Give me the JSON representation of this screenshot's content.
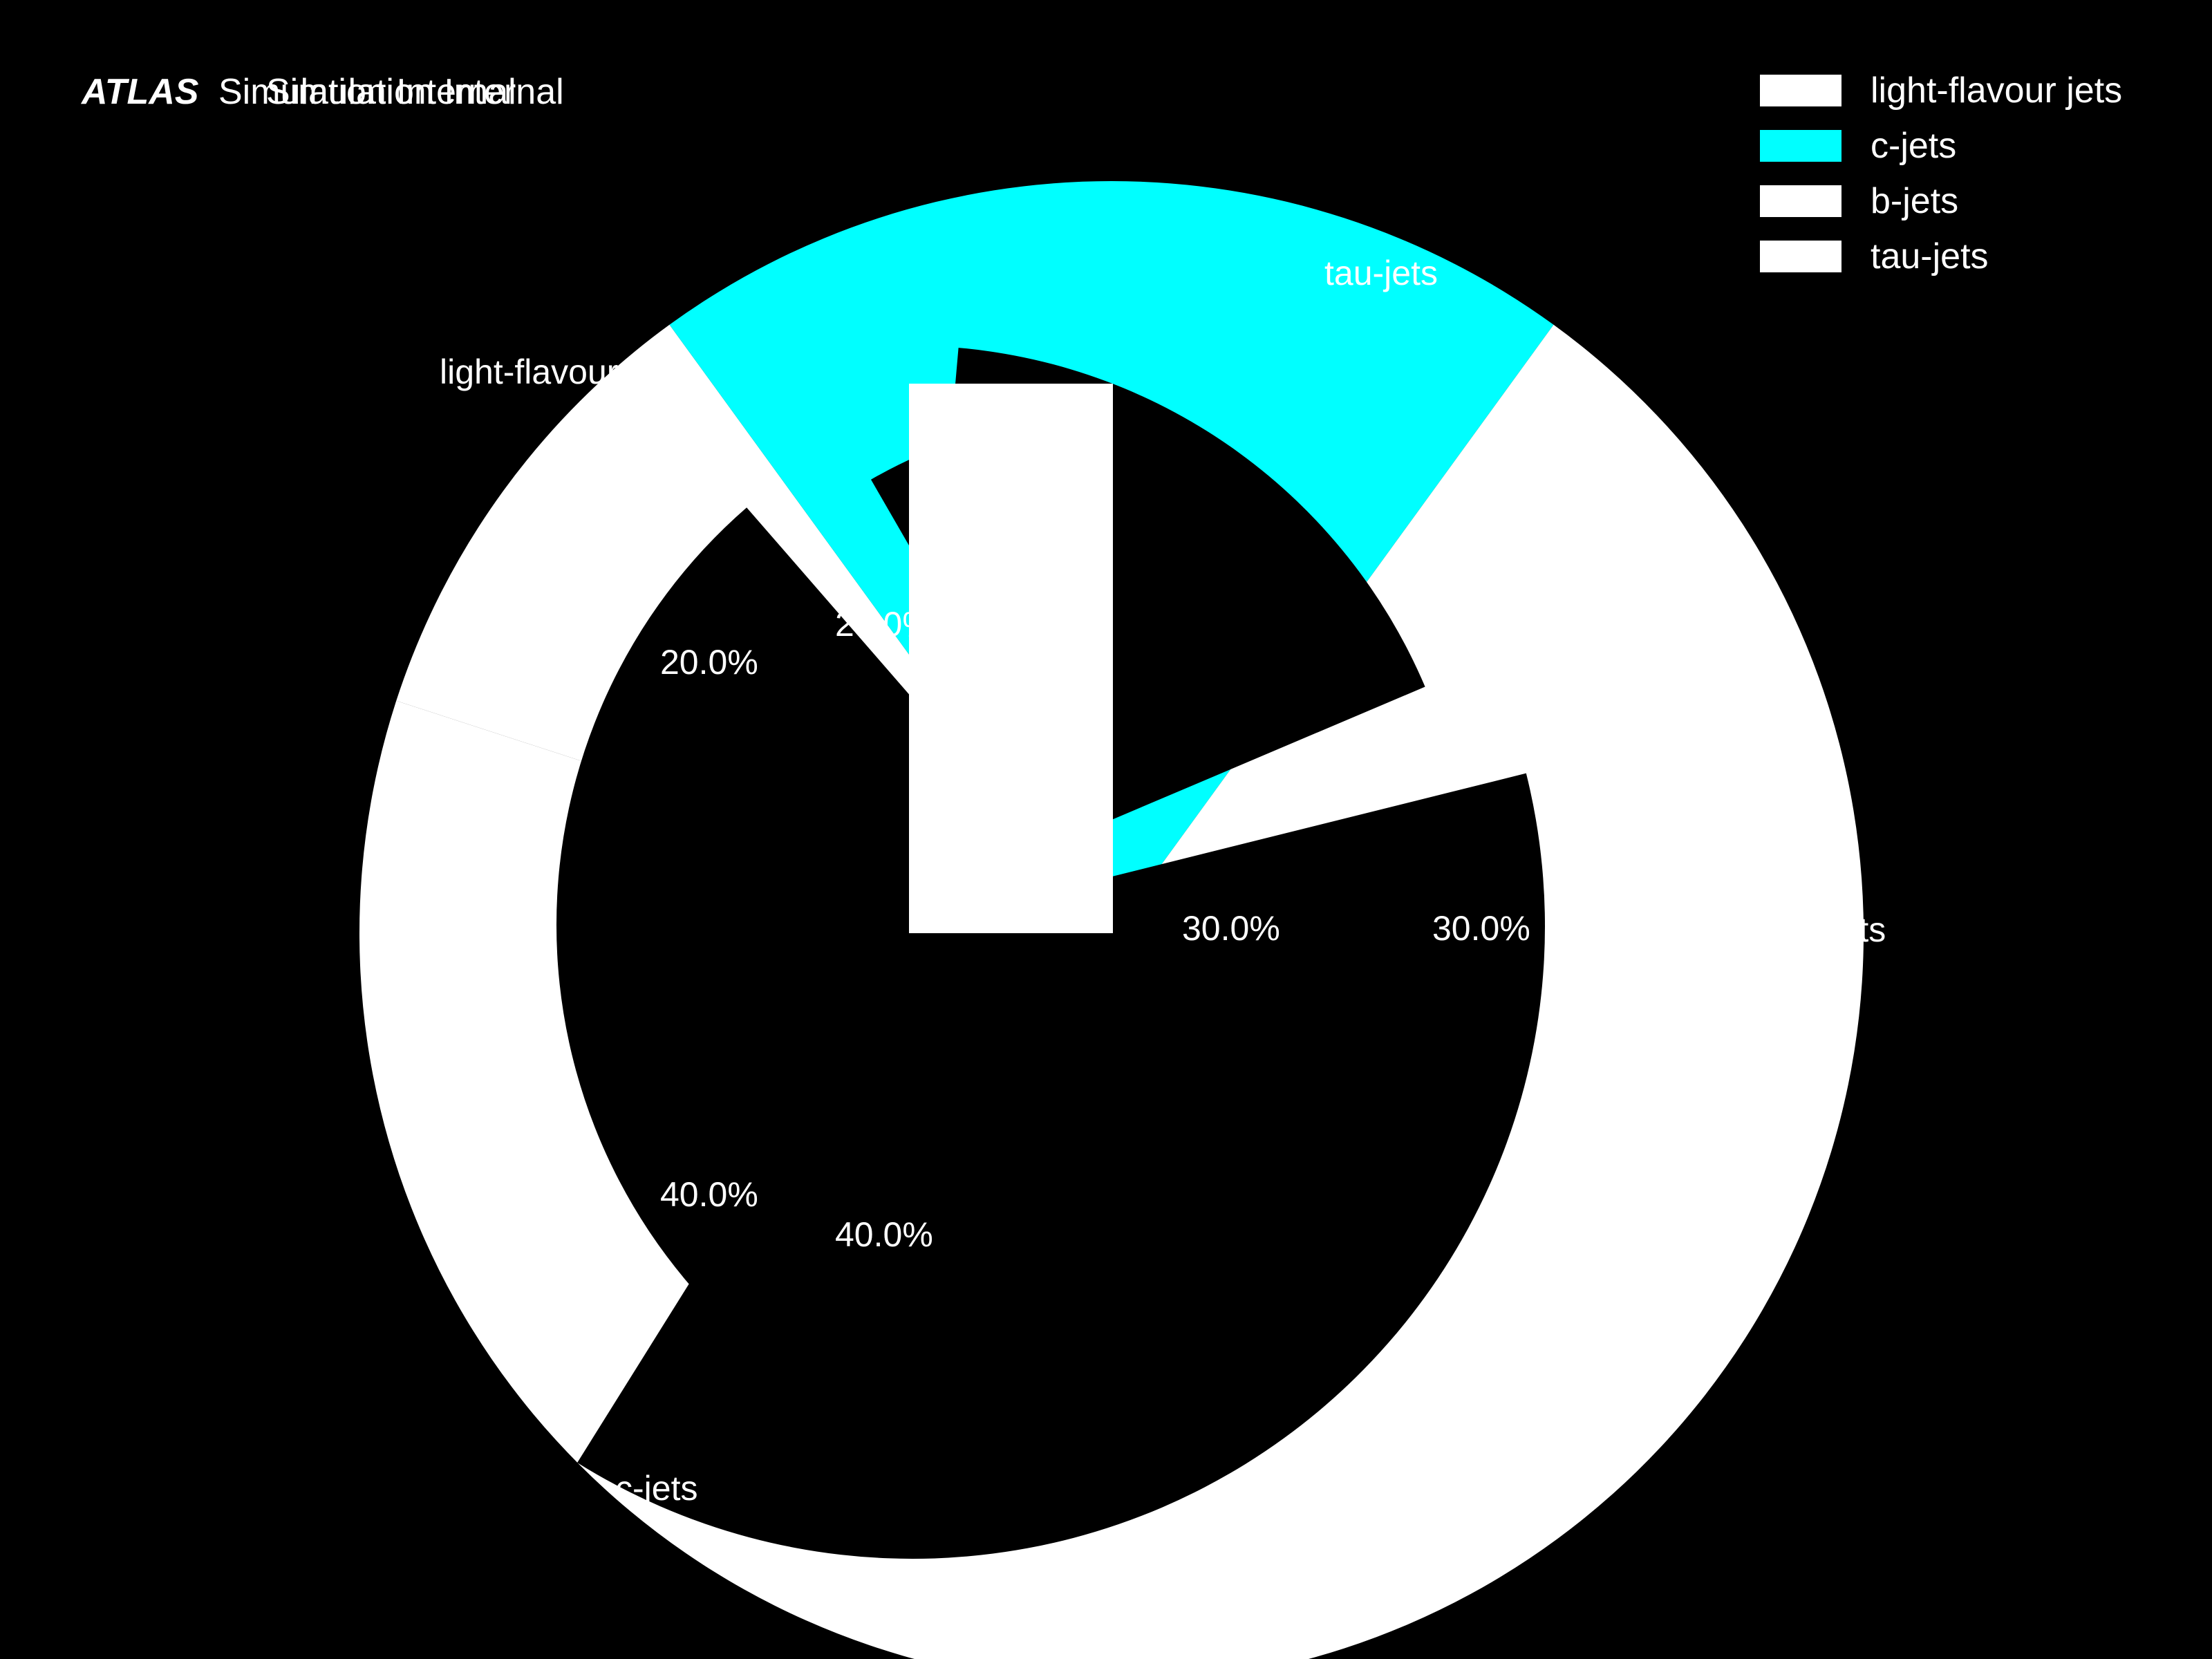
{
  "header": {
    "atlas": "ATLAS",
    "label_line1": "Simulation Internal",
    "label_line2": "Simulation Internal"
  },
  "chart_data": {
    "type": "pie",
    "categories": [
      "light-flavour jets",
      "c-jets",
      "b-jets",
      "tau-jets"
    ],
    "outer_ring": {
      "values": [
        10,
        20,
        70,
        0
      ],
      "colors": [
        "#ffffff",
        "#00ffff",
        "#ffffff",
        "#ffffff"
      ]
    },
    "inner_pie": {
      "values": [
        20,
        40,
        30,
        10
      ],
      "labels": [
        "20.0%",
        "40.0%",
        "30.0%",
        ""
      ]
    },
    "outer_labels": {
      "light": "light-flavour jets",
      "c": "c-jets",
      "b": "b-jets",
      "tau": "tau-jets"
    },
    "inner_overlay_labels": [
      "20.0%",
      "40.0%",
      "30.0%"
    ],
    "legend": {
      "placement": "top-right",
      "entries": [
        {
          "label": "light-flavour jets",
          "color": "#ffffff"
        },
        {
          "label": "c-jets",
          "color": "#00ffff"
        },
        {
          "label": "b-jets",
          "color": "#ffffff"
        },
        {
          "label": "tau-jets",
          "color": "#ffffff"
        }
      ]
    },
    "colors": {
      "background": "#000000",
      "c": "#00ffff",
      "white": "#ffffff"
    }
  }
}
